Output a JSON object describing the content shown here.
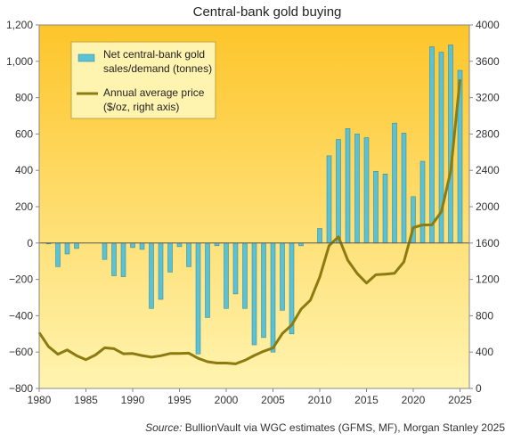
{
  "chart_data": {
    "type": "bar",
    "title": "Central-bank  gold buying",
    "series": [
      {
        "name": "Net central-bank gold sales/demand (tonnes)",
        "kind": "bar",
        "axis": "left",
        "color": "#5bc2d6",
        "x": [
          1981,
          1982,
          1983,
          1984,
          1985,
          1986,
          1987,
          1988,
          1989,
          1990,
          1991,
          1992,
          1993,
          1994,
          1995,
          1996,
          1997,
          1998,
          1999,
          2000,
          2001,
          2002,
          2003,
          2004,
          2005,
          2006,
          2007,
          2008,
          2009,
          2010,
          2011,
          2012,
          2013,
          2014,
          2015,
          2016,
          2017,
          2018,
          2019,
          2020,
          2021,
          2022,
          2023,
          2024,
          2025
        ],
        "values": [
          -5,
          -130,
          -60,
          -30,
          0,
          0,
          -90,
          -180,
          -185,
          -25,
          -35,
          -360,
          -310,
          -160,
          -20,
          -130,
          -610,
          -410,
          -15,
          -360,
          -280,
          -360,
          -560,
          -520,
          -600,
          -370,
          -500,
          -15,
          0,
          80,
          480,
          570,
          630,
          600,
          580,
          395,
          380,
          660,
          605,
          255,
          450,
          1080,
          1050,
          1090,
          950
        ]
      },
      {
        "name": "Annual average price ($/oz, right axis)",
        "kind": "line",
        "axis": "right",
        "color": "#8c7b10",
        "x": [
          1980,
          1981,
          1982,
          1983,
          1984,
          1985,
          1986,
          1987,
          1988,
          1989,
          1990,
          1991,
          1992,
          1993,
          1994,
          1995,
          1996,
          1997,
          1998,
          1999,
          2000,
          2001,
          2002,
          2003,
          2004,
          2005,
          2006,
          2007,
          2008,
          2009,
          2010,
          2011,
          2012,
          2013,
          2014,
          2015,
          2016,
          2017,
          2018,
          2019,
          2020,
          2021,
          2022,
          2023,
          2024,
          2025
        ],
        "values": [
          615,
          460,
          376,
          424,
          361,
          317,
          368,
          447,
          437,
          381,
          384,
          362,
          344,
          360,
          384,
          384,
          388,
          331,
          294,
          279,
          279,
          271,
          310,
          363,
          409,
          445,
          604,
          697,
          872,
          972,
          1225,
          1572,
          1669,
          1411,
          1266,
          1160,
          1251,
          1257,
          1268,
          1393,
          1770,
          1799,
          1800,
          1943,
          2386,
          3400
        ]
      }
    ],
    "xlim": [
      1980,
      2026
    ],
    "x_ticks": [
      1980,
      1985,
      1990,
      1995,
      2000,
      2005,
      2010,
      2015,
      2020,
      2025
    ],
    "ylim_left": [
      -800,
      1200
    ],
    "y_left_ticks": [
      -800,
      -600,
      -400,
      -200,
      0,
      200,
      400,
      600,
      800,
      1000,
      1200
    ],
    "y_left_tick_labels": [
      "−800",
      "−600",
      "−400",
      "−200",
      "0",
      "200",
      "400",
      "600",
      "800",
      "1,000",
      "1,200"
    ],
    "ylim_right": [
      0,
      4000
    ],
    "y_right_ticks": [
      0,
      400,
      800,
      1200,
      1600,
      2000,
      2400,
      2800,
      3200,
      3600,
      4000
    ],
    "legend": {
      "placement": "top-left",
      "items": [
        {
          "lines": [
            "Net central-bank gold",
            "sales/demand (tonnes)"
          ],
          "kind": "bar"
        },
        {
          "lines": [
            "Annual average price",
            "($/oz, right axis)"
          ],
          "kind": "line"
        }
      ]
    },
    "grid": false,
    "background": {
      "top": "#fdc52a",
      "bottom": "#fff4b0"
    },
    "source": {
      "label": "Source:",
      "text": " BullionVault via  WGC estimates (GFMS, MF), Morgan  Stanley 2025"
    }
  }
}
